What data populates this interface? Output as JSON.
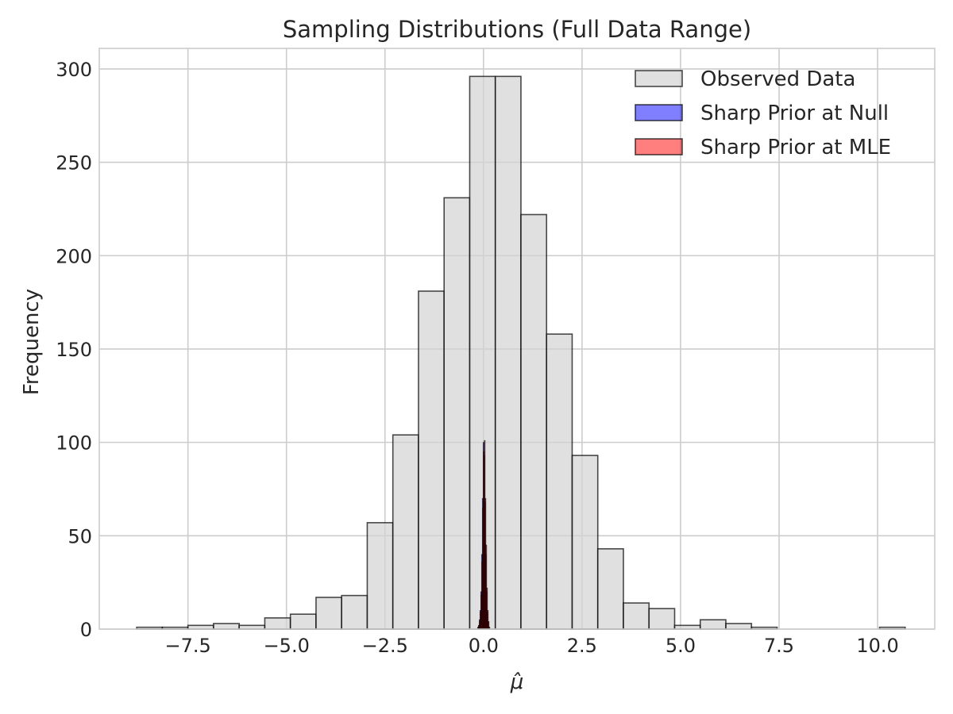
{
  "chart_data": {
    "type": "bar",
    "title": "Sampling Distributions (Full Data Range)",
    "xlabel": "μ̂",
    "ylabel": "Frequency",
    "xlim": [
      -9.75,
      11.45
    ],
    "ylim": [
      0,
      311
    ],
    "xticks": [
      -7.5,
      -5.0,
      -2.5,
      0.0,
      2.5,
      5.0,
      7.5,
      10.0
    ],
    "xtick_labels": [
      "−7.5",
      "−5.0",
      "−2.5",
      "0.0",
      "2.5",
      "5.0",
      "7.5",
      "10.0"
    ],
    "yticks": [
      0,
      50,
      100,
      150,
      200,
      250,
      300
    ],
    "ytick_labels": [
      "0",
      "50",
      "100",
      "150",
      "200",
      "250",
      "300"
    ],
    "grid": true,
    "legend_position": "top-right",
    "series": [
      {
        "name": "Observed Data",
        "color": "#d3d3d3",
        "edge_color": "#000000",
        "bin_edges": [
          -8.8,
          -8.15,
          -7.5,
          -6.85,
          -6.2,
          -5.55,
          -4.9,
          -4.25,
          -3.6,
          -2.95,
          -2.3,
          -1.65,
          -1.0,
          -0.35,
          0.3,
          0.95,
          1.6,
          2.25,
          2.9,
          3.55,
          4.2,
          4.85,
          5.5,
          6.15,
          6.8,
          7.45,
          8.1,
          8.75,
          9.4,
          10.05,
          10.7
        ],
        "values": [
          1,
          1,
          2,
          3,
          2,
          6,
          8,
          17,
          18,
          57,
          104,
          181,
          231,
          296,
          296,
          222,
          158,
          93,
          43,
          14,
          11,
          2,
          5,
          3,
          1,
          0,
          0,
          0,
          0,
          1
        ]
      },
      {
        "name": "Sharp Prior at Null",
        "color": "#0000ff",
        "edge_color": "#000000",
        "bin_edges": [
          -0.15,
          -0.13,
          -0.11,
          -0.09,
          -0.07,
          -0.05,
          -0.03,
          -0.01,
          0.01,
          0.03,
          0.05,
          0.07,
          0.09,
          0.11,
          0.13,
          0.15
        ],
        "values": [
          1,
          2,
          5,
          10,
          20,
          40,
          70,
          100,
          93,
          68,
          40,
          20,
          9,
          4,
          1
        ]
      },
      {
        "name": "Sharp Prior at MLE",
        "color": "#ff0000",
        "edge_color": "#000000",
        "bin_edges": [
          -0.14,
          -0.12,
          -0.1,
          -0.08,
          -0.06,
          -0.04,
          -0.02,
          0.0,
          0.02,
          0.04,
          0.06,
          0.08,
          0.1,
          0.12,
          0.14,
          0.16
        ],
        "values": [
          1,
          2,
          4,
          9,
          18,
          36,
          65,
          95,
          101,
          70,
          45,
          22,
          10,
          4,
          1
        ]
      }
    ]
  }
}
